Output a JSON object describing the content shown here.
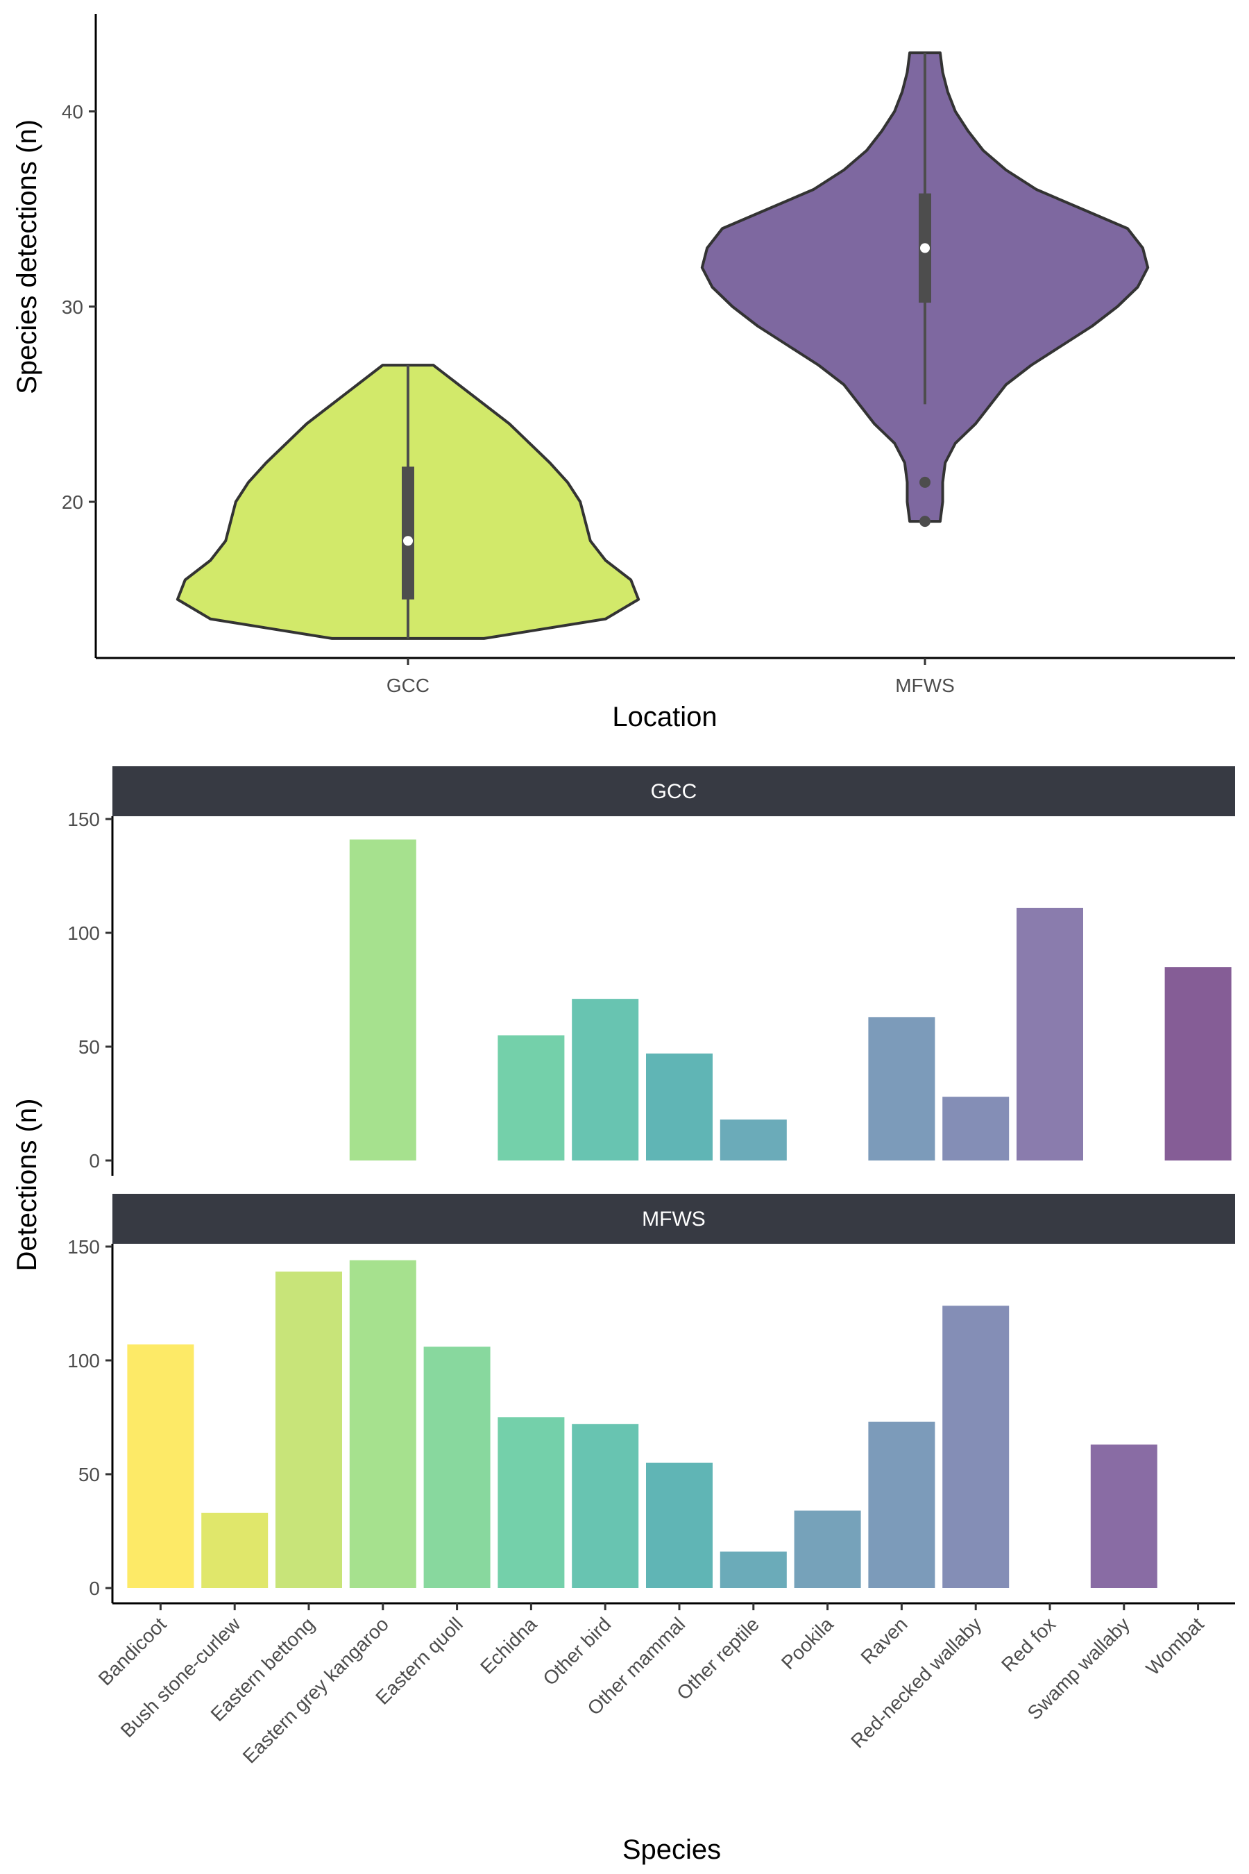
{
  "chart_data": [
    {
      "type": "violin",
      "xlabel": "Location",
      "ylabel": "Species detections (n)",
      "categories": [
        "GCC",
        "MFWS"
      ],
      "ylim": [
        12,
        44
      ],
      "yticks": [
        20,
        30,
        40
      ],
      "grid": false,
      "legend": "none",
      "violins": [
        {
          "name": "GCC",
          "color": "#d2e96a",
          "density_y": [
            13,
            14,
            15,
            16,
            17,
            18,
            19,
            20,
            21,
            22,
            23,
            24,
            25,
            26,
            27
          ],
          "density_w": [
            0.3,
            0.78,
            0.91,
            0.88,
            0.78,
            0.72,
            0.7,
            0.68,
            0.63,
            0.56,
            0.48,
            0.4,
            0.3,
            0.2,
            0.1
          ],
          "whisker": [
            13,
            27
          ],
          "q1": 15,
          "q3": 21.8,
          "median": 18,
          "outliers": []
        },
        {
          "name": "MFWS",
          "color": "#7e68a0",
          "density_y": [
            19,
            20,
            21,
            22,
            23,
            24,
            25,
            26,
            27,
            28,
            29,
            30,
            31,
            32,
            33,
            34,
            35,
            36,
            37,
            38,
            39,
            40,
            41,
            42,
            43
          ],
          "density_w": [
            0.06,
            0.07,
            0.07,
            0.08,
            0.12,
            0.2,
            0.26,
            0.32,
            0.42,
            0.54,
            0.66,
            0.76,
            0.84,
            0.88,
            0.86,
            0.8,
            0.62,
            0.44,
            0.32,
            0.23,
            0.17,
            0.12,
            0.09,
            0.07,
            0.06
          ],
          "whisker": [
            25,
            43
          ],
          "q1": 30.2,
          "q3": 35.8,
          "median": 33,
          "outliers": [
            21,
            19
          ]
        }
      ]
    },
    {
      "type": "bar",
      "facets": [
        "GCC",
        "MFWS"
      ],
      "xlabel": "Species",
      "ylabel": "Detections (n)",
      "ylim": [
        0,
        150
      ],
      "yticks": [
        0,
        50,
        100,
        150
      ],
      "grid": false,
      "legend": "none",
      "categories": [
        "Bandicoot",
        "Bush stone-curlew",
        "Eastern bettong",
        "Eastern grey kangaroo",
        "Eastern quoll",
        "Echidna",
        "Other bird",
        "Other mammal",
        "Other reptile",
        "Pookila",
        "Raven",
        "Red-necked wallaby",
        "Red fox",
        "Swamp wallaby",
        "Wombat"
      ],
      "colors": [
        "#fde85a",
        "#dde55e",
        "#c3e26e",
        "#9ede84",
        "#7ed596",
        "#68cca3",
        "#5bbfaa",
        "#52afaf",
        "#5ea4b3",
        "#6a9ab4",
        "#7192b4",
        "#7984b0",
        "#8071a6",
        "#7f5f9c",
        "#7b4f8d"
      ],
      "series": [
        {
          "name": "GCC",
          "values": [
            0,
            0,
            0,
            141,
            0,
            55,
            71,
            47,
            18,
            0,
            63,
            28,
            111,
            0,
            85
          ]
        },
        {
          "name": "MFWS",
          "values": [
            107,
            33,
            139,
            144,
            106,
            75,
            72,
            55,
            16,
            34,
            73,
            124,
            0,
            63,
            0
          ]
        }
      ]
    }
  ]
}
